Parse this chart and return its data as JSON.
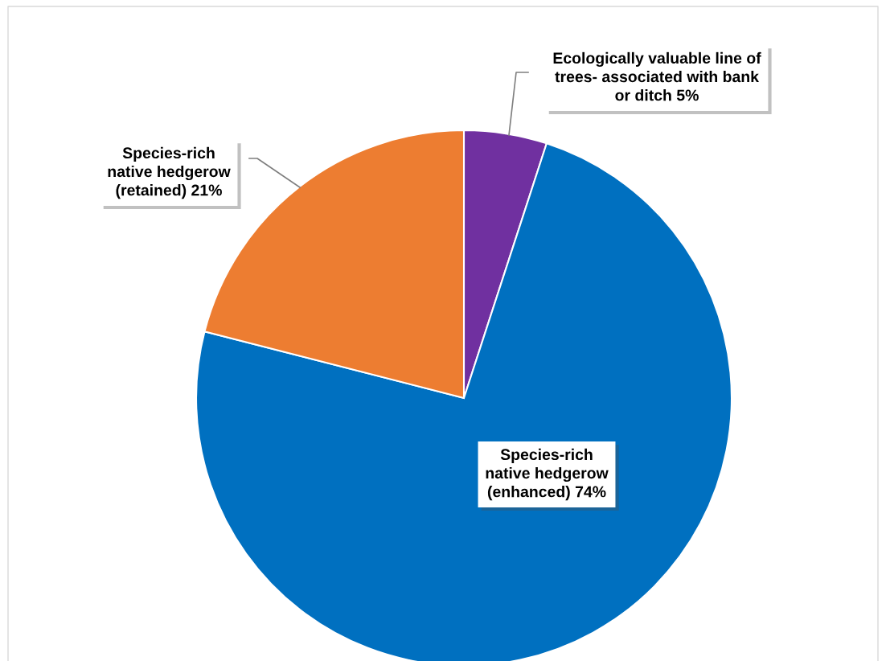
{
  "chart_data": {
    "type": "pie",
    "categories": [
      "Ecologically valuable line of\ntrees- associated with bank\nor ditch",
      "Species-rich\nnative hedgerow\n(enhanced)",
      "Species-rich\nnative hedgerow\n(retained)"
    ],
    "values": [
      5,
      74,
      21
    ],
    "value_labels": [
      "5%",
      "74%",
      "21%"
    ],
    "colors": [
      "#7030a0",
      "#0070c0",
      "#ed7d31"
    ],
    "legend": false
  }
}
